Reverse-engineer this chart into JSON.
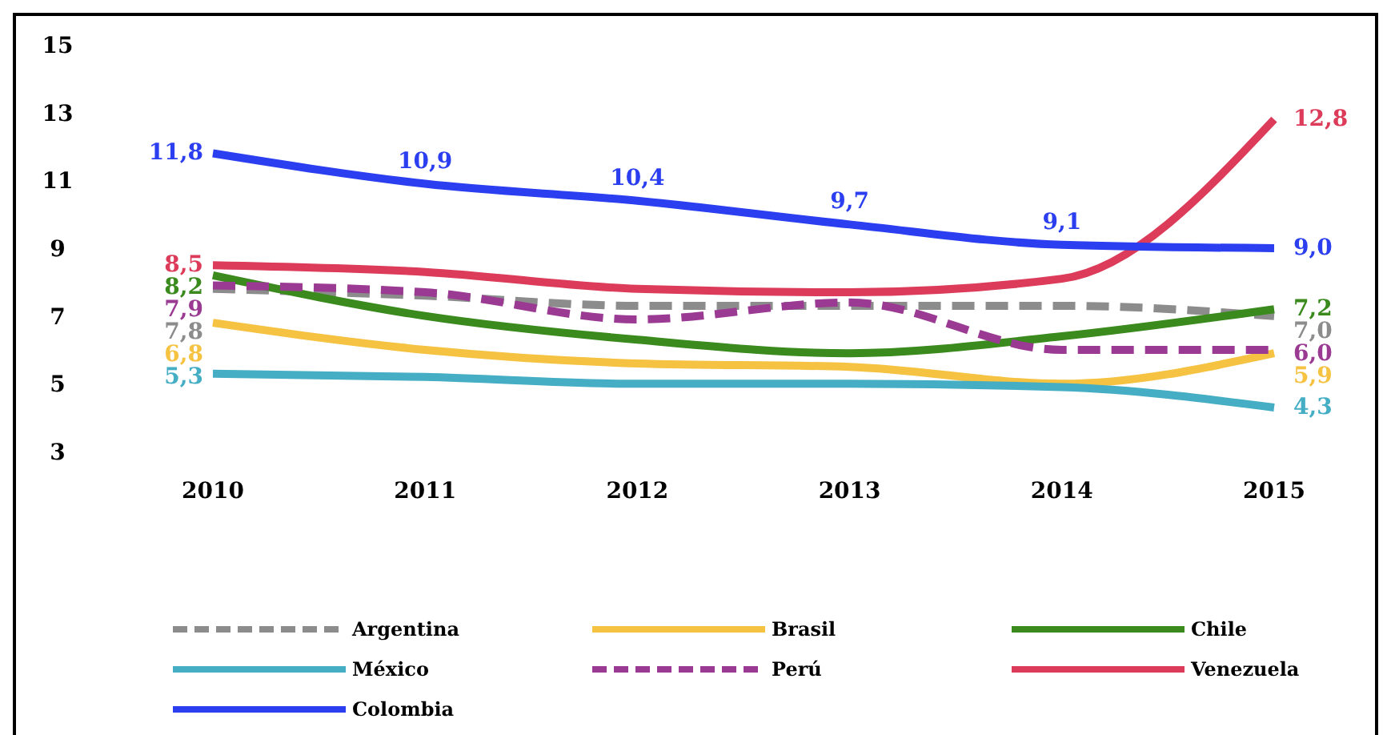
{
  "chart_data": {
    "type": "line",
    "categories": [
      "2010",
      "2011",
      "2012",
      "2013",
      "2014",
      "2015"
    ],
    "ylim": [
      3,
      15
    ],
    "yticks": [
      3,
      5,
      7,
      9,
      11,
      13,
      15
    ],
    "grid": false,
    "legend": "bottom",
    "marker": "none",
    "series": [
      {
        "name": "Argentina",
        "color": "#8c8c8c",
        "line_style": "dashed",
        "values": [
          7.8,
          7.6,
          7.3,
          7.3,
          7.3,
          7.0
        ],
        "value_labels": [
          "7,8",
          null,
          null,
          null,
          null,
          "7,0"
        ]
      },
      {
        "name": "Brasil",
        "color": "#f5c242",
        "values": [
          6.8,
          6.0,
          5.6,
          5.5,
          5.0,
          5.9
        ],
        "value_labels": [
          "6,8",
          null,
          null,
          null,
          null,
          "5,9"
        ]
      },
      {
        "name": "Chile",
        "color": "#3a8a1e",
        "values": [
          8.2,
          7.0,
          6.3,
          5.9,
          6.4,
          7.2
        ],
        "value_labels": [
          "8,2",
          null,
          null,
          null,
          null,
          "7,2"
        ]
      },
      {
        "name": "México",
        "color": "#45aec4",
        "values": [
          5.3,
          5.2,
          5.0,
          5.0,
          4.9,
          4.3
        ],
        "value_labels": [
          "5,3",
          null,
          null,
          null,
          null,
          "4,3"
        ]
      },
      {
        "name": "Perú",
        "color": "#9b3a92",
        "line_style": "dashed",
        "values": [
          7.9,
          7.7,
          6.9,
          7.4,
          6.0,
          6.0
        ],
        "value_labels": [
          "7,9",
          null,
          null,
          null,
          null,
          "6,0"
        ]
      },
      {
        "name": "Venezuela",
        "color": "#dc3c5a",
        "values": [
          8.5,
          8.3,
          7.8,
          7.7,
          8.1,
          12.8
        ],
        "value_labels": [
          "8,5",
          null,
          null,
          null,
          null,
          "12,8"
        ]
      },
      {
        "name": "Colombia",
        "color": "#2b3ff0",
        "values": [
          11.8,
          10.9,
          10.4,
          9.7,
          9.1,
          9.0
        ],
        "value_labels": [
          "11,8",
          "10,9",
          "10,4",
          "9,7",
          "9,1",
          "9,0"
        ]
      }
    ]
  }
}
